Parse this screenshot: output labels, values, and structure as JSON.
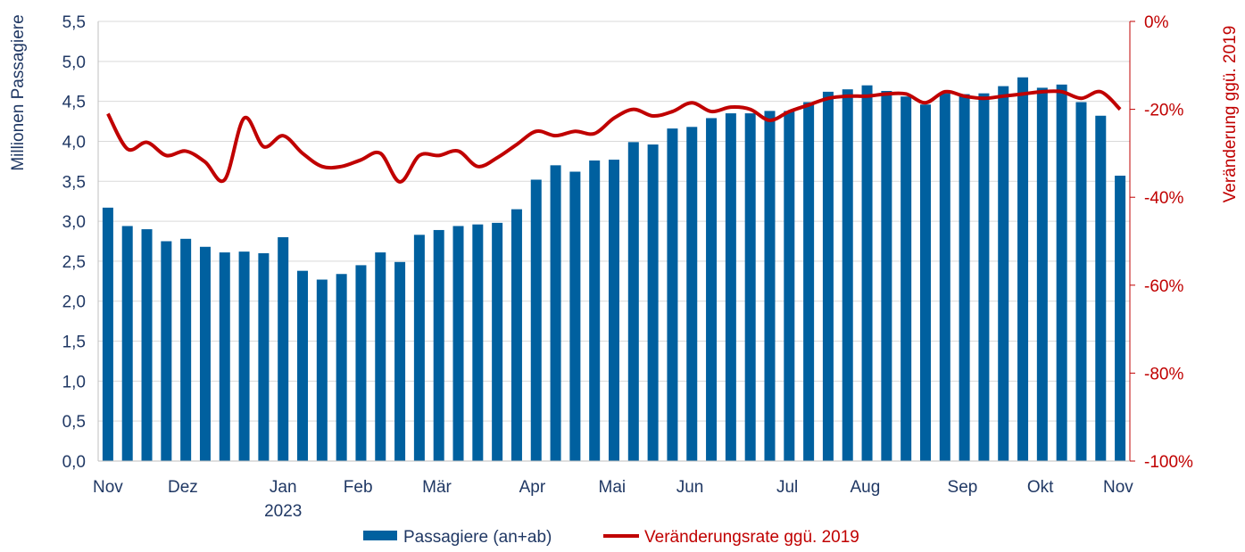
{
  "chart_data": {
    "type": "bar",
    "title": "",
    "ylabel": "Millionen Passagiere",
    "y2label": "Veränderung ggü. 2019",
    "ylim": [
      0,
      5.5
    ],
    "yticks": [
      "0,0",
      "0,5",
      "1,0",
      "1,5",
      "2,0",
      "2,5",
      "3,0",
      "3,5",
      "4,0",
      "4,5",
      "5,0",
      "5,5"
    ],
    "y2lim": [
      -100,
      0
    ],
    "y2ticks": [
      "-100%",
      "-80%",
      "-60%",
      "-40%",
      "-20%",
      "0%"
    ],
    "grid": true,
    "legend_position": "bottom",
    "xticks": [
      {
        "label": "Nov",
        "sub": "",
        "at_week": 0
      },
      {
        "label": "Dez",
        "sub": "",
        "at_week": 3.85
      },
      {
        "label": "Jan",
        "sub": "2023",
        "at_week": 9
      },
      {
        "label": "Feb",
        "sub": "",
        "at_week": 12.85
      },
      {
        "label": "Mär",
        "sub": "",
        "at_week": 16.9
      },
      {
        "label": "Apr",
        "sub": "",
        "at_week": 21.8
      },
      {
        "label": "Mai",
        "sub": "",
        "at_week": 25.9
      },
      {
        "label": "Jun",
        "sub": "",
        "at_week": 29.9
      },
      {
        "label": "Jul",
        "sub": "",
        "at_week": 34.9
      },
      {
        "label": "Aug",
        "sub": "",
        "at_week": 38.9
      },
      {
        "label": "Sep",
        "sub": "",
        "at_week": 43.9
      },
      {
        "label": "Okt",
        "sub": "",
        "at_week": 47.9
      },
      {
        "label": "Nov",
        "sub": "",
        "at_week": 51.9
      }
    ],
    "series": [
      {
        "name": "Passagiere (an+ab)",
        "type": "bar",
        "axis": "left",
        "color": "#00609F",
        "values": [
          3.17,
          2.94,
          2.9,
          2.75,
          2.78,
          2.68,
          2.61,
          2.62,
          2.6,
          2.8,
          2.38,
          2.27,
          2.34,
          2.45,
          2.61,
          2.49,
          2.83,
          2.89,
          2.94,
          2.96,
          2.98,
          3.15,
          3.52,
          3.7,
          3.62,
          3.76,
          3.77,
          3.99,
          3.96,
          4.16,
          4.18,
          4.29,
          4.35,
          4.35,
          4.38,
          4.38,
          4.49,
          4.62,
          4.65,
          4.7,
          4.63,
          4.56,
          4.46,
          4.6,
          4.59,
          4.6,
          4.69,
          4.8,
          4.67,
          4.71,
          4.49,
          4.32,
          3.57
        ]
      },
      {
        "name": "Veränderungsrate ggü. 2019",
        "type": "line",
        "axis": "right",
        "color": "#C00000",
        "values": [
          -21,
          -29,
          -27.5,
          -30.5,
          -29.5,
          -32,
          -36,
          -22,
          -28.5,
          -26,
          -30,
          -33,
          -33,
          -31.5,
          -30,
          -36.5,
          -30.5,
          -30.5,
          -29.5,
          -33,
          -31,
          -28,
          -25,
          -26,
          -25,
          -25.5,
          -22,
          -20,
          -21.5,
          -20.5,
          -18.5,
          -20.5,
          -19.5,
          -20,
          -22.5,
          -20.5,
          -19,
          -17.5,
          -17,
          -17,
          -16.5,
          -16.5,
          -18.5,
          -16,
          -17,
          -17.5,
          -17,
          -16.5,
          -16,
          -16,
          -17.5,
          -16,
          -20
        ]
      }
    ]
  }
}
